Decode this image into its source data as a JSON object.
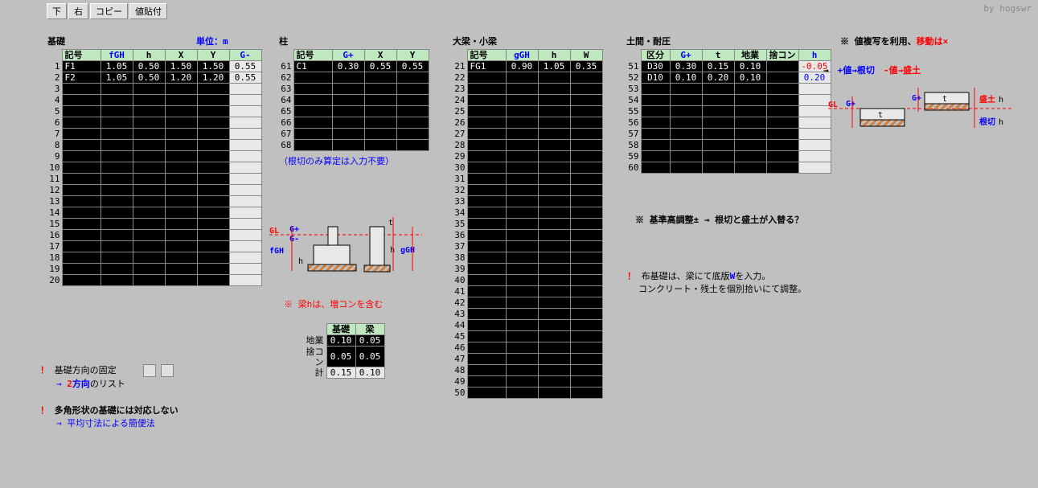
{
  "watermark": "by hogswr",
  "toolbar": {
    "down": "下",
    "right": "右",
    "copy": "コピー",
    "paste": "値貼付"
  },
  "unit_label": "単位：m",
  "section1": {
    "title": "基礎",
    "headers": {
      "sym": "記号",
      "fgh": "fGH",
      "h": "h",
      "x": "X",
      "y": "Y",
      "gminus": "G-"
    },
    "rows": [
      {
        "n": "1",
        "sym": "F1",
        "fgh": "1.05",
        "h": "0.50",
        "x": "1.50",
        "y": "1.50",
        "g": "0.55"
      },
      {
        "n": "2",
        "sym": "F2",
        "fgh": "1.05",
        "h": "0.50",
        "x": "1.20",
        "y": "1.20",
        "g": "0.55"
      },
      {
        "n": "3"
      },
      {
        "n": "4"
      },
      {
        "n": "5"
      },
      {
        "n": "6"
      },
      {
        "n": "7"
      },
      {
        "n": "8"
      },
      {
        "n": "9"
      },
      {
        "n": "10"
      },
      {
        "n": "11"
      },
      {
        "n": "12"
      },
      {
        "n": "13"
      },
      {
        "n": "14"
      },
      {
        "n": "15"
      },
      {
        "n": "16"
      },
      {
        "n": "17"
      },
      {
        "n": "18"
      },
      {
        "n": "19"
      },
      {
        "n": "20"
      }
    ]
  },
  "section2": {
    "title": "柱",
    "headers": {
      "sym": "記号",
      "gplus": "G+",
      "x": "X",
      "y": "Y"
    },
    "rows": [
      {
        "n": "61",
        "sym": "C1",
        "g": "0.30",
        "x": "0.55",
        "y": "0.55"
      },
      {
        "n": "62"
      },
      {
        "n": "63"
      },
      {
        "n": "64"
      },
      {
        "n": "65"
      },
      {
        "n": "66"
      },
      {
        "n": "67"
      },
      {
        "n": "68"
      }
    ],
    "foot": "（根切のみ算定は入力不要）"
  },
  "section3": {
    "title": "大梁・小梁",
    "headers": {
      "sym": "記号",
      "ggh": "gGH",
      "h": "h",
      "w": "W"
    },
    "rows": [
      {
        "n": "21",
        "sym": "FG1",
        "g": "0.90",
        "h": "1.05",
        "w": "0.35"
      },
      {
        "n": "22"
      },
      {
        "n": "23"
      },
      {
        "n": "24"
      },
      {
        "n": "25"
      },
      {
        "n": "26"
      },
      {
        "n": "27"
      },
      {
        "n": "28"
      },
      {
        "n": "29"
      },
      {
        "n": "30"
      },
      {
        "n": "31"
      },
      {
        "n": "32"
      },
      {
        "n": "33"
      },
      {
        "n": "34"
      },
      {
        "n": "35"
      },
      {
        "n": "36"
      },
      {
        "n": "37"
      },
      {
        "n": "38"
      },
      {
        "n": "39"
      },
      {
        "n": "40"
      },
      {
        "n": "41"
      },
      {
        "n": "42"
      },
      {
        "n": "43"
      },
      {
        "n": "44"
      },
      {
        "n": "45"
      },
      {
        "n": "46"
      },
      {
        "n": "47"
      },
      {
        "n": "48"
      },
      {
        "n": "49"
      },
      {
        "n": "50"
      }
    ]
  },
  "section4": {
    "title": "土間・耐圧",
    "headers": {
      "kubun": "区分",
      "gplus": "G+",
      "t": "t",
      "jigyou": "地業",
      "sutecon": "捨コン",
      "h": "h"
    },
    "rows": [
      {
        "n": "51",
        "k": "D30",
        "g": "0.30",
        "t": "0.15",
        "j": "0.10",
        "h": "-0.05",
        "hc": "r"
      },
      {
        "n": "52",
        "k": "D10",
        "g": "0.10",
        "t": "0.20",
        "j": "0.10",
        "h": "0.20",
        "hc": "b"
      },
      {
        "n": "53"
      },
      {
        "n": "54"
      },
      {
        "n": "55"
      },
      {
        "n": "56"
      },
      {
        "n": "57"
      },
      {
        "n": "58"
      },
      {
        "n": "59"
      },
      {
        "n": "60"
      }
    ]
  },
  "mini": {
    "h1": "基礎",
    "h2": "梁",
    "r1l": "地業",
    "r1a": "0.10",
    "r1b": "0.05",
    "r2l": "捨コン",
    "r2a": "0.05",
    "r2b": "0.05",
    "r3l": "計",
    "r3a": "0.15",
    "r3b": "0.10"
  },
  "notes": {
    "a1": "基礎方向の固定",
    "a2": "→ 2方向のリスト",
    "b1": "多角形状の基礎には対応しない",
    "b2": "→ 平均寸法による簡便法",
    "c": "※ 梁hは、増コンを含む",
    "d": "※ 基準高調整±  →  根切と盛土が入替る？",
    "e1": "布基礎は、梁にて底版Wを入力。",
    "e2": "コンクリート・残土を個別拾いにて調整。",
    "f": "※ 値複写を利用、移動は×",
    "g1": "→　+値→根切　-値→盛土"
  },
  "diag1": {
    "gl": "GL",
    "gp": "G+",
    "gm": "G-",
    "fgh": "fGH",
    "ggh": "gGH",
    "t": "t",
    "h": "h"
  },
  "diag2": {
    "gl": "GL",
    "gp": "G+",
    "t": "t",
    "morih": "盛土h",
    "nekih": "根切h"
  },
  "colors": {
    "bg": "#c0c0c0",
    "header": "#c0e8c0",
    "dark": "#000000",
    "blue": "#0000ff",
    "red": "#ff0000",
    "hatch": "#d08030"
  }
}
